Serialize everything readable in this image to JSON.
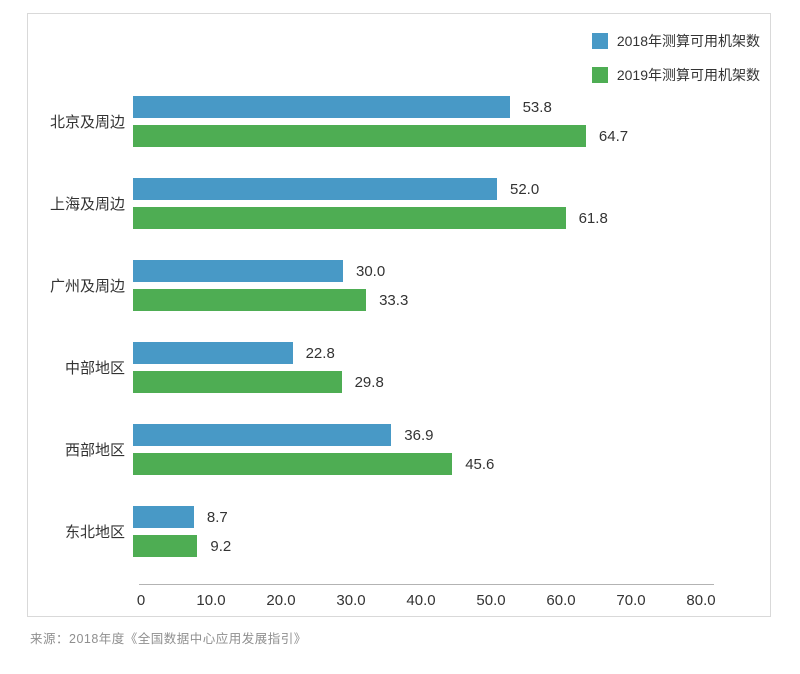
{
  "chart_data": {
    "type": "bar",
    "orientation": "horizontal",
    "categories": [
      "北京及周边",
      "上海及周边",
      "广州及周边",
      "中部地区",
      "西部地区",
      "东北地区"
    ],
    "series": [
      {
        "name": "2018年测算可用机架数",
        "color": "#4899c6",
        "values": [
          53.8,
          52.0,
          30.0,
          22.8,
          36.9,
          8.7
        ]
      },
      {
        "name": "2019年测算可用机架数",
        "color": "#4ead53",
        "values": [
          64.7,
          61.8,
          33.3,
          29.8,
          45.6,
          9.2
        ]
      }
    ],
    "xlim": [
      0,
      80
    ],
    "xticks": [
      "0",
      "10.0",
      "20.0",
      "30.0",
      "40.0",
      "50.0",
      "60.0",
      "70.0",
      "80.0"
    ],
    "grid": false,
    "legend_position": "top-right",
    "value_labels_decimals": 1,
    "title": "",
    "xlabel": "",
    "ylabel": ""
  },
  "source_note": "来源：2018年度《全国数据中心应用发展指引》",
  "colors": {
    "bar_2018": "#4899c6",
    "bar_2019": "#4ead53",
    "text": "#333333",
    "axis_line": "#b3b3b3",
    "panel_border": "#d9d9d9",
    "source_text": "#8f8f8f"
  }
}
